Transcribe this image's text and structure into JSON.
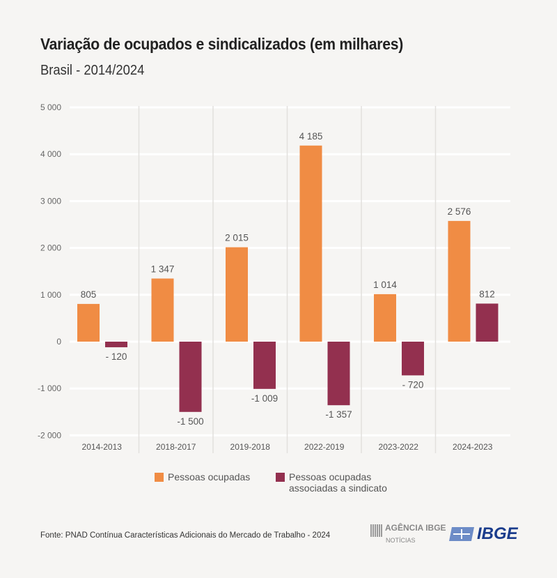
{
  "title": "Variação de ocupados e sindicalizados (em milhares)",
  "subtitle": "Brasil - 2014/2024",
  "source": "Fonte: PNAD Contínua Características Adicionais do Mercado de Trabalho - 2024",
  "logos": {
    "agencia": "AGÊNCIA IBGE",
    "agencia_sub": "NOTÍCIAS",
    "ibge": "IBGE"
  },
  "chart_data": {
    "type": "bar",
    "categories": [
      "2014-2013",
      "2018-2017",
      "2019-2018",
      "2022-2019",
      "2023-2022",
      "2024-2023"
    ],
    "series": [
      {
        "name": "Pessoas ocupadas",
        "color": "#f08c44",
        "values": [
          805,
          1347,
          2015,
          4185,
          1014,
          2576
        ],
        "labels": [
          "805",
          "1 347",
          "2 015",
          "4 185",
          "1 014",
          "2 576"
        ]
      },
      {
        "name": "Pessoas ocupadas associadas a sindicato",
        "color": "#93304f",
        "values": [
          -120,
          -1500,
          -1009,
          -1357,
          -720,
          812
        ],
        "labels": [
          "- 120",
          "-1 500",
          "-1 009",
          "-1 357",
          "- 720",
          "812"
        ]
      }
    ],
    "ylim": [
      -2000,
      5000
    ],
    "yticks": [
      5000,
      4000,
      3000,
      2000,
      1000,
      0,
      -1000,
      -2000
    ],
    "ytick_labels": [
      "5 000",
      "4 000",
      "3 000",
      "2 000",
      "1 000",
      "0",
      "-1 000",
      "-2 000"
    ],
    "grid": true,
    "legend": "bottom"
  },
  "legend": {
    "item1": "Pessoas ocupadas",
    "item2a": "Pessoas ocupadas",
    "item2b": "associadas a sindicato"
  }
}
